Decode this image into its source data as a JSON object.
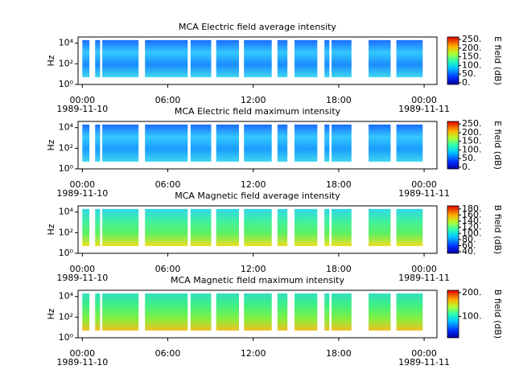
{
  "chart_data": [
    {
      "type": "spectrogram",
      "title": "MCA  Electric field average intensity",
      "ylabel": "Hz",
      "colorbar_label": "E field (dB)",
      "xlim": [
        -0.3,
        24.9
      ],
      "xticks": [
        {
          "value": 0,
          "label": "00:00"
        },
        {
          "value": 6,
          "label": "06:00"
        },
        {
          "value": 12,
          "label": "12:00"
        },
        {
          "value": 18,
          "label": "18:00"
        },
        {
          "value": 24,
          "label": "00:00"
        }
      ],
      "date_labels": [
        {
          "value": 0,
          "label": "1989-11-10"
        },
        {
          "value": 24,
          "label": "1989-11-11"
        }
      ],
      "ylim": [
        1,
        40000
      ],
      "log_y": true,
      "yticks": [
        {
          "value": 1,
          "label": "10⁰"
        },
        {
          "value": 100,
          "label": "10²"
        },
        {
          "value": 10000,
          "label": "10⁴"
        }
      ],
      "clim": [
        -10,
        265
      ],
      "cticks": [
        {
          "value": 0,
          "label": "0."
        },
        {
          "value": 50,
          "label": "50."
        },
        {
          "value": 100,
          "label": "100."
        },
        {
          "value": 150,
          "label": "150."
        },
        {
          "value": 200,
          "label": "200."
        },
        {
          "value": 250,
          "label": "250."
        }
      ],
      "segment_flim": [
        5,
        20000
      ],
      "segments": [
        [
          0,
          0.5
        ],
        [
          0.9,
          1.25
        ],
        [
          1.4,
          3.95
        ],
        [
          4.4,
          7.4
        ],
        [
          7.6,
          9.05
        ],
        [
          9.4,
          11.0
        ],
        [
          11.35,
          13.3
        ],
        [
          13.7,
          14.4
        ],
        [
          14.9,
          16.5
        ],
        [
          17.0,
          17.35
        ],
        [
          17.5,
          18.9
        ],
        [
          20.1,
          21.65
        ],
        [
          22.05,
          23.9
        ]
      ],
      "fill_colors": [
        "#1a6cff",
        "#33c8ff",
        "#1a8cff",
        "#40d8f0"
      ]
    },
    {
      "type": "spectrogram",
      "title": "MCA  Electric field maximum intensity",
      "ylabel": "Hz",
      "colorbar_label": "E field (dB)",
      "xlim": [
        -0.3,
        24.9
      ],
      "xticks": [
        {
          "value": 0,
          "label": "00:00"
        },
        {
          "value": 6,
          "label": "06:00"
        },
        {
          "value": 12,
          "label": "12:00"
        },
        {
          "value": 18,
          "label": "18:00"
        },
        {
          "value": 24,
          "label": "00:00"
        }
      ],
      "date_labels": [
        {
          "value": 0,
          "label": "1989-11-10"
        },
        {
          "value": 24,
          "label": "1989-11-11"
        }
      ],
      "ylim": [
        1,
        40000
      ],
      "log_y": true,
      "yticks": [
        {
          "value": 1,
          "label": "10⁰"
        },
        {
          "value": 100,
          "label": "10²"
        },
        {
          "value": 10000,
          "label": "10⁴"
        }
      ],
      "clim": [
        -10,
        265
      ],
      "cticks": [
        {
          "value": 0,
          "label": "0."
        },
        {
          "value": 50,
          "label": "50."
        },
        {
          "value": 100,
          "label": "100."
        },
        {
          "value": 150,
          "label": "150."
        },
        {
          "value": 200,
          "label": "200."
        },
        {
          "value": 250,
          "label": "250."
        }
      ],
      "segment_flim": [
        5,
        20000
      ],
      "segments": [
        [
          0,
          0.5
        ],
        [
          0.9,
          1.25
        ],
        [
          1.4,
          3.95
        ],
        [
          4.4,
          7.4
        ],
        [
          7.6,
          9.05
        ],
        [
          9.4,
          11.0
        ],
        [
          11.35,
          13.3
        ],
        [
          13.7,
          14.4
        ],
        [
          14.9,
          16.5
        ],
        [
          17.0,
          17.35
        ],
        [
          17.5,
          18.9
        ],
        [
          20.1,
          21.65
        ],
        [
          22.05,
          23.9
        ]
      ],
      "fill_colors": [
        "#1a6cff",
        "#33c8ff",
        "#1a9cff",
        "#40d8f0"
      ]
    },
    {
      "type": "spectrogram",
      "title": "MCA  Magnetic field average intensity",
      "ylabel": "Hz",
      "colorbar_label": "B field (dB)",
      "xlim": [
        -0.3,
        24.9
      ],
      "xticks": [
        {
          "value": 0,
          "label": "00:00"
        },
        {
          "value": 6,
          "label": "06:00"
        },
        {
          "value": 12,
          "label": "12:00"
        },
        {
          "value": 18,
          "label": "18:00"
        },
        {
          "value": 24,
          "label": "00:00"
        }
      ],
      "date_labels": [
        {
          "value": 0,
          "label": "1989-11-10"
        },
        {
          "value": 24,
          "label": "1989-11-11"
        }
      ],
      "ylim": [
        1,
        40000
      ],
      "log_y": true,
      "yticks": [
        {
          "value": 1,
          "label": "10⁰"
        },
        {
          "value": 100,
          "label": "10²"
        },
        {
          "value": 10000,
          "label": "10⁴"
        }
      ],
      "clim": [
        35,
        190
      ],
      "cticks": [
        {
          "value": 40,
          "label": "40."
        },
        {
          "value": 60,
          "label": "60."
        },
        {
          "value": 80,
          "label": "80."
        },
        {
          "value": 100,
          "label": "100."
        },
        {
          "value": 120,
          "label": "120."
        },
        {
          "value": 140,
          "label": "140."
        },
        {
          "value": 160,
          "label": "160."
        },
        {
          "value": 180,
          "label": "180."
        }
      ],
      "segment_flim": [
        5,
        20000
      ],
      "segments": [
        [
          0,
          0.5
        ],
        [
          0.9,
          1.25
        ],
        [
          1.4,
          3.95
        ],
        [
          4.4,
          7.4
        ],
        [
          7.6,
          9.05
        ],
        [
          9.4,
          11.0
        ],
        [
          11.35,
          13.3
        ],
        [
          13.7,
          14.4
        ],
        [
          14.9,
          16.5
        ],
        [
          17.0,
          17.35
        ],
        [
          17.5,
          18.9
        ],
        [
          20.1,
          21.65
        ],
        [
          22.05,
          23.9
        ]
      ],
      "fill_colors": [
        "#30d8e8",
        "#40f0a0",
        "#60f060",
        "#f0e020"
      ]
    },
    {
      "type": "spectrogram",
      "title": "MCA  Magnetic field maximum intensity",
      "ylabel": "Hz",
      "colorbar_label": "B field (dB)",
      "xlim": [
        -0.3,
        24.9
      ],
      "xticks": [
        {
          "value": 0,
          "label": "00:00"
        },
        {
          "value": 6,
          "label": "06:00"
        },
        {
          "value": 12,
          "label": "12:00"
        },
        {
          "value": 18,
          "label": "18:00"
        },
        {
          "value": 24,
          "label": "00:00"
        }
      ],
      "date_labels": [
        {
          "value": 0,
          "label": "1989-11-10"
        },
        {
          "value": 24,
          "label": "1989-11-11"
        }
      ],
      "ylim": [
        1,
        40000
      ],
      "log_y": true,
      "yticks": [
        {
          "value": 1,
          "label": "10⁰"
        },
        {
          "value": 100,
          "label": "10²"
        },
        {
          "value": 10000,
          "label": "10⁴"
        }
      ],
      "clim": [
        10,
        210
      ],
      "cticks": [
        {
          "value": 100,
          "label": "100."
        },
        {
          "value": 200,
          "label": "200."
        }
      ],
      "segment_flim": [
        5,
        20000
      ],
      "segments": [
        [
          0,
          0.5
        ],
        [
          0.9,
          1.25
        ],
        [
          1.4,
          3.95
        ],
        [
          4.4,
          7.4
        ],
        [
          7.6,
          9.05
        ],
        [
          9.4,
          11.0
        ],
        [
          11.35,
          13.3
        ],
        [
          13.7,
          14.4
        ],
        [
          14.9,
          16.5
        ],
        [
          17.0,
          17.35
        ],
        [
          17.5,
          18.9
        ],
        [
          20.1,
          21.65
        ],
        [
          22.05,
          23.9
        ]
      ],
      "fill_colors": [
        "#30e0c0",
        "#40f080",
        "#80f040",
        "#f0c020"
      ]
    }
  ]
}
